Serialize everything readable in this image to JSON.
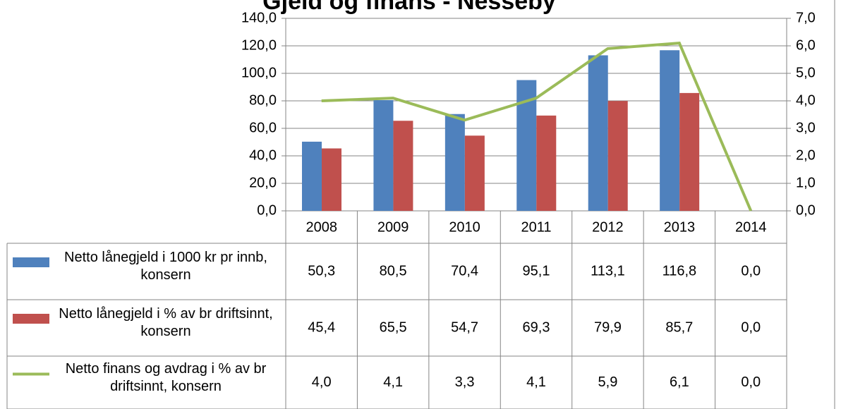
{
  "chart_data": {
    "type": "bar",
    "title": "Gjeld og finans - Nesseby",
    "categories": [
      "2008",
      "2009",
      "2010",
      "2011",
      "2012",
      "2013",
      "2014"
    ],
    "series": [
      {
        "name": "Netto lånegjeld i 1000 kr pr innb, konsern",
        "color": "#4f81bd",
        "values": [
          50.3,
          80.5,
          70.4,
          95.1,
          113.1,
          116.8,
          0.0
        ],
        "value_labels": [
          "50,3",
          "80,5",
          "70,4",
          "95,1",
          "113,1",
          "116,8",
          "0,0"
        ]
      },
      {
        "name": "Netto lånegjeld i % av br driftsinnt, konsern",
        "color": "#c0504d",
        "values": [
          45.4,
          65.5,
          54.7,
          69.3,
          79.9,
          85.7,
          0.0
        ],
        "value_labels": [
          "45,4",
          "65,5",
          "54,7",
          "69,3",
          "79,9",
          "85,7",
          "0,0"
        ]
      },
      {
        "name": "Netto finans og avdrag i % av br driftsinnt, konsern",
        "color": "#9bbb59",
        "type": "line",
        "axis": "y2",
        "values": [
          4.0,
          4.1,
          3.3,
          4.1,
          5.9,
          6.1,
          0.0
        ],
        "value_labels": [
          "4,0",
          "4,1",
          "3,3",
          "4,1",
          "5,9",
          "6,1",
          "0,0"
        ]
      }
    ],
    "ylim": [
      0,
      140
    ],
    "yticks": [
      {
        "value": 0,
        "label": "0,0"
      },
      {
        "value": 20,
        "label": "20,0"
      },
      {
        "value": 40,
        "label": "40,0"
      },
      {
        "value": 60,
        "label": "60,0"
      },
      {
        "value": 80,
        "label": "80,0"
      },
      {
        "value": 100,
        "label": "100,0"
      },
      {
        "value": 120,
        "label": "120,0"
      },
      {
        "value": 140,
        "label": "140,0"
      }
    ],
    "y2lim": [
      0,
      7
    ],
    "y2ticks": [
      {
        "value": 0,
        "label": "0,0"
      },
      {
        "value": 1,
        "label": "1,0"
      },
      {
        "value": 2,
        "label": "2,0"
      },
      {
        "value": 3,
        "label": "3,0"
      },
      {
        "value": 4,
        "label": "4,0"
      },
      {
        "value": 5,
        "label": "5,0"
      },
      {
        "value": 6,
        "label": "6,0"
      },
      {
        "value": 7,
        "label": "7,0"
      }
    ],
    "grid": true
  }
}
